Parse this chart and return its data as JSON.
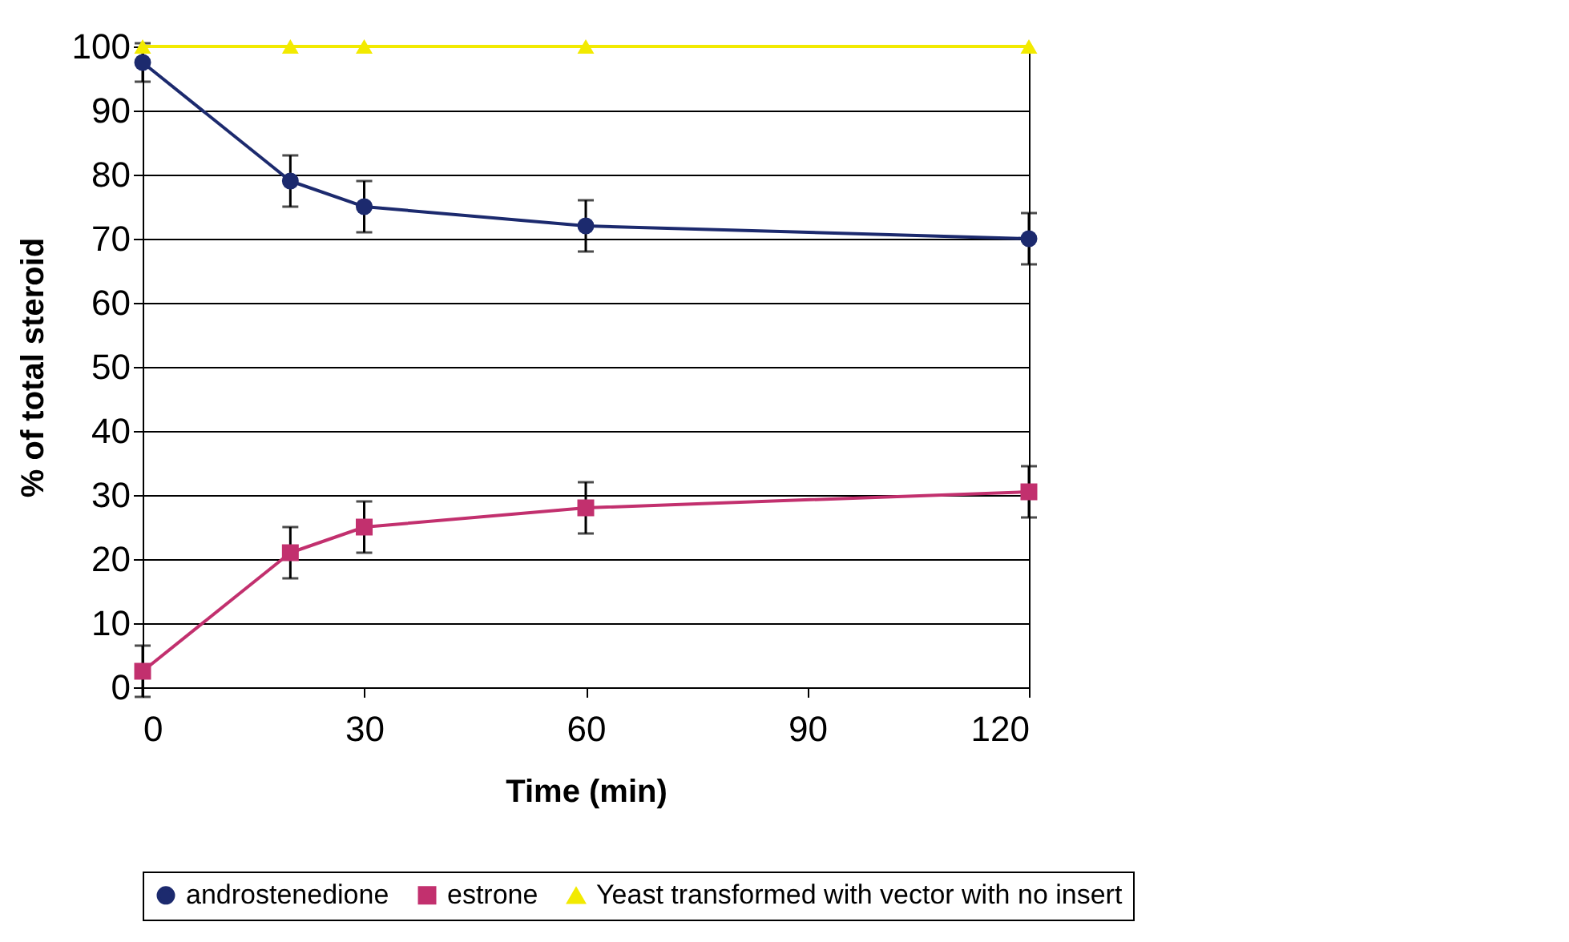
{
  "chart_data": {
    "type": "line",
    "xlabel": "Time (min)",
    "ylabel": "% of total steroid",
    "x": [
      0,
      20,
      30,
      60,
      120
    ],
    "series": [
      {
        "name": "androstenedione",
        "color": "#1c2a6e",
        "marker": "circle",
        "values": [
          97.5,
          79,
          75,
          72,
          70
        ],
        "errors": [
          3,
          4,
          4,
          4,
          4
        ]
      },
      {
        "name": "estrone",
        "color": "#c2306e",
        "marker": "square",
        "values": [
          2.5,
          21,
          25,
          28,
          30.5
        ],
        "errors": [
          4,
          4,
          4,
          4,
          4
        ]
      },
      {
        "name": "Yeast transformed with vector with no insert",
        "color": "#f2ea00",
        "marker": "triangle",
        "values": [
          100,
          100,
          100,
          100,
          100
        ]
      }
    ],
    "xlim": [
      0,
      120
    ],
    "xticks": [
      0,
      30,
      60,
      90,
      120
    ],
    "ylim": [
      0,
      100
    ],
    "yticks": [
      0,
      10,
      20,
      30,
      40,
      50,
      60,
      70,
      80,
      90,
      100
    ],
    "grid": "y",
    "legend": "bottom"
  }
}
